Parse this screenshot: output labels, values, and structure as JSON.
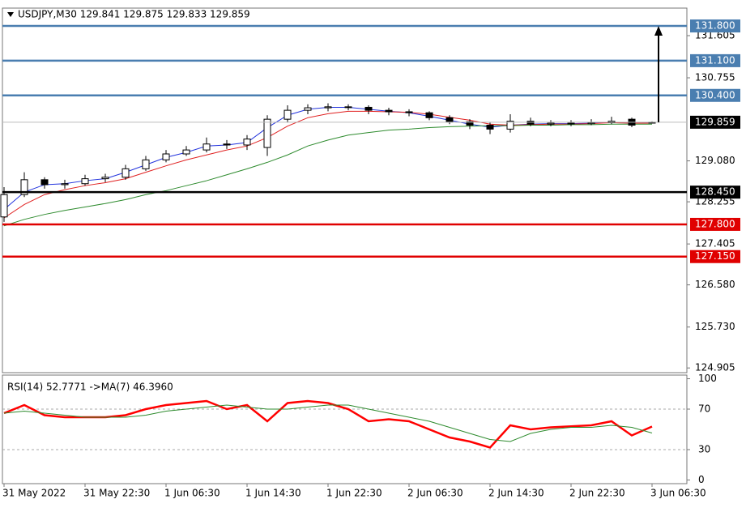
{
  "chart_data": [
    {
      "type": "candlestick",
      "title": "USDJPY,M30  129.841 129.875 129.833 129.859",
      "categories": [
        "31 May 2022",
        null,
        null,
        null,
        "31 May 22:30",
        null,
        null,
        null,
        "1 Jun 06:30",
        null,
        null,
        null,
        "1 Jun 14:30",
        null,
        null,
        null,
        "1 Jun 22:30",
        null,
        null,
        null,
        "2 Jun 06:30",
        null,
        null,
        null,
        "2 Jun 14:30",
        null,
        null,
        null,
        "2 Jun 22:30",
        null,
        null,
        null,
        "3 Jun 06:30"
      ],
      "open": [
        127.95,
        128.4,
        128.7,
        128.6,
        128.62,
        128.72,
        128.75,
        128.92,
        129.1,
        129.22,
        129.3,
        129.42,
        129.4,
        129.35,
        129.92,
        130.1,
        130.15,
        130.17,
        130.16,
        130.1,
        130.07,
        130.05,
        129.95,
        129.87,
        129.8,
        129.72,
        129.88,
        129.82,
        129.84,
        129.83,
        129.85,
        129.92,
        129.841
      ],
      "high": [
        128.55,
        128.85,
        128.75,
        128.7,
        128.8,
        128.82,
        129.0,
        129.18,
        129.3,
        129.38,
        129.55,
        129.5,
        129.6,
        130.0,
        130.2,
        130.22,
        130.24,
        130.22,
        130.2,
        130.15,
        130.12,
        130.08,
        130.0,
        129.92,
        129.85,
        130.02,
        129.95,
        129.9,
        129.9,
        129.92,
        129.97,
        129.95,
        129.875
      ],
      "low": [
        127.85,
        128.35,
        128.52,
        128.52,
        128.58,
        128.65,
        128.7,
        128.88,
        129.05,
        129.18,
        129.25,
        129.32,
        129.3,
        129.18,
        129.85,
        130.02,
        130.08,
        130.1,
        130.02,
        130.0,
        129.98,
        129.9,
        129.82,
        129.72,
        129.62,
        129.65,
        129.78,
        129.78,
        129.78,
        129.8,
        129.82,
        129.76,
        129.833
      ],
      "close": [
        128.4,
        128.7,
        128.6,
        128.62,
        128.72,
        128.75,
        128.92,
        129.1,
        129.22,
        129.3,
        129.42,
        129.4,
        129.52,
        129.92,
        130.1,
        130.15,
        130.17,
        130.16,
        130.1,
        130.07,
        130.05,
        129.95,
        129.87,
        129.8,
        129.72,
        129.88,
        129.82,
        129.84,
        129.83,
        129.85,
        129.88,
        129.8,
        129.859
      ],
      "lines": [
        {
          "color": "#2233dd",
          "values": [
            128.1,
            128.45,
            128.6,
            128.62,
            128.68,
            128.72,
            128.85,
            129.0,
            129.15,
            129.25,
            129.38,
            129.4,
            129.45,
            129.75,
            130.0,
            130.12,
            130.16,
            130.16,
            130.12,
            130.08,
            130.05,
            129.98,
            129.9,
            129.82,
            129.76,
            129.8,
            129.82,
            129.83,
            129.83,
            129.84,
            129.86,
            129.84,
            129.85
          ]
        },
        {
          "color": "#e02020",
          "values": [
            127.93,
            128.2,
            128.4,
            128.5,
            128.58,
            128.64,
            128.72,
            128.85,
            128.98,
            129.1,
            129.2,
            129.3,
            129.38,
            129.55,
            129.78,
            129.95,
            130.03,
            130.08,
            130.08,
            130.07,
            130.06,
            130.02,
            129.96,
            129.9,
            129.82,
            129.8,
            129.81,
            129.82,
            129.82,
            129.83,
            129.85,
            129.84,
            129.84
          ]
        },
        {
          "color": "#2e8b2e",
          "values": [
            127.77,
            127.9,
            128.0,
            128.08,
            128.15,
            128.22,
            128.3,
            128.4,
            128.48,
            128.58,
            128.68,
            128.8,
            128.92,
            129.05,
            129.2,
            129.38,
            129.5,
            129.6,
            129.65,
            129.7,
            129.72,
            129.75,
            129.77,
            129.78,
            129.79,
            129.79,
            129.8,
            129.8,
            129.81,
            129.81,
            129.82,
            129.82,
            129.82
          ]
        }
      ],
      "ylim": [
        124.81,
        132.16
      ],
      "yticks": [
        131.605,
        130.755,
        {
          "value": 129.08,
          "label": "129.080"
        },
        128.255,
        127.405,
        {
          "value": 126.58,
          "label": "126.580"
        },
        {
          "value": 125.73,
          "label": "125.730"
        },
        124.905
      ],
      "levels": [
        {
          "value": 131.8,
          "label": "131.800",
          "color": "#4a7eb0"
        },
        {
          "value": 131.1,
          "label": "131.100",
          "color": "#4a7eb0"
        },
        {
          "value": 130.4,
          "label": "130.400",
          "color": "#4a7eb0"
        },
        {
          "value": 128.45,
          "label": "128.450",
          "color": "#000000"
        },
        {
          "value": 127.8,
          "label": "127.800",
          "color": "#e00000"
        },
        {
          "value": 127.15,
          "label": "127.150",
          "color": "#e00000"
        }
      ],
      "current_price": 129.859
    },
    {
      "type": "line",
      "title": "RSI(14) 52.7771  ->MA(7) 46.3960",
      "lines": [
        {
          "color": "#ff0000",
          "values": [
            66,
            74,
            64,
            62,
            62,
            62,
            64,
            70,
            74,
            76,
            78,
            70,
            74,
            58,
            76,
            78,
            76,
            70,
            58,
            60,
            58,
            50,
            42,
            38,
            32,
            54,
            50,
            52,
            53,
            54,
            58,
            44,
            52.7771
          ]
        },
        {
          "color": "#2e8b2e",
          "values": [
            66,
            68,
            66,
            64,
            62,
            62,
            62,
            64,
            68,
            70,
            72,
            74,
            72,
            70,
            70,
            72,
            74,
            74,
            70,
            66,
            62,
            58,
            52,
            46,
            40,
            38,
            46,
            50,
            52,
            52,
            54,
            52,
            46.396
          ]
        }
      ],
      "ylim": [
        -3.6,
        103.6
      ],
      "yticks": [
        0,
        30,
        70,
        100
      ],
      "levels": [
        70,
        30
      ]
    }
  ]
}
